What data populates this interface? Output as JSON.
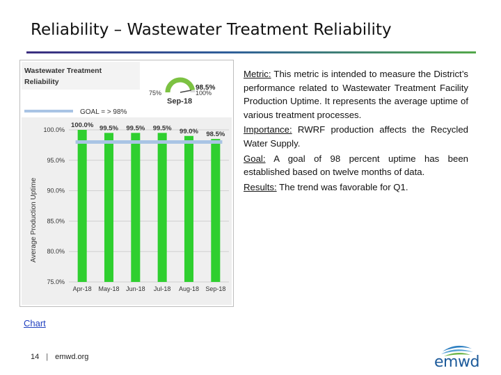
{
  "slide": {
    "title": "Reliability – Wastewater Treatment Reliability"
  },
  "chart_panel": {
    "header_line1": "Wastewater Treatment",
    "header_line2": "Reliability",
    "goal_label": "GOAL = > 98%",
    "gauge": {
      "value": 98.5,
      "value_label": "98.5%",
      "min_label": "75%",
      "max_label": "100%",
      "period_label": "Sep-18"
    }
  },
  "chart_data": {
    "type": "bar",
    "title": "Wastewater Treatment Reliability",
    "ylabel": "Average Production Uptime",
    "xlabel": "",
    "categories": [
      "Apr-18",
      "May-18",
      "Jun-18",
      "Jul-18",
      "Aug-18",
      "Sep-18"
    ],
    "values": [
      100.0,
      99.5,
      99.5,
      99.5,
      99.0,
      98.5
    ],
    "data_labels": [
      "100.0%",
      "99.5%",
      "99.5%",
      "99.5%",
      "99.0%",
      "98.5%"
    ],
    "goal": 98,
    "ylim": [
      75,
      100
    ],
    "yticks": [
      100,
      95,
      90,
      85,
      80,
      75
    ],
    "ytick_labels": [
      "100.0%",
      "95.0%",
      "90.0%",
      "85.0%",
      "80.0%",
      "75.0%"
    ],
    "grid": true,
    "bar_color": "#2fcf2f",
    "goal_color": "#a9c4e4"
  },
  "content": {
    "metric_label": "Metric:",
    "metric_text": "This metric is intended to measure the District’s performance related to Wastewater Treatment Facility Production Uptime. It represents the average uptime of various treatment processes.",
    "importance_label": "Importance:",
    "importance_text": "RWRF production affects the Recycled Water Supply.",
    "goal_label": "Goal:",
    "goal_text": "A goal of 98 percent uptime has been established based on twelve months of data.",
    "results_label": "Results:",
    "results_text": "The trend was favorable for Q1."
  },
  "chart_link": "Chart",
  "footer": {
    "page_number": "14",
    "separator": "|",
    "site": "emwd.org"
  },
  "logo_text": "emwd"
}
